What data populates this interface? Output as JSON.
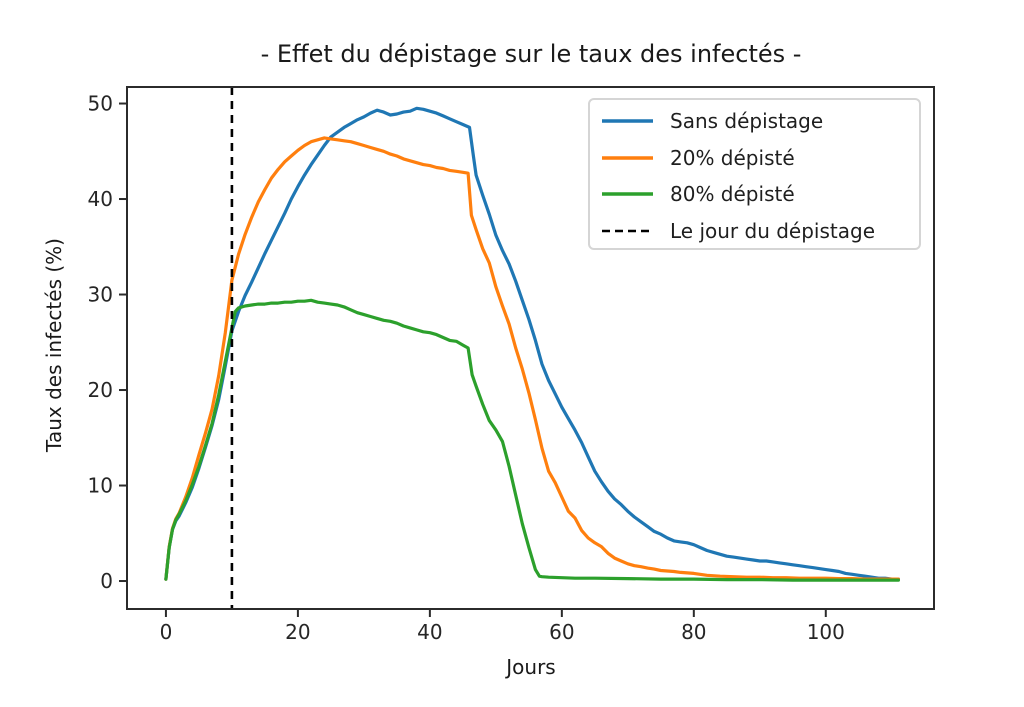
{
  "chart_data": {
    "type": "line",
    "title": "- Effet du dépistage sur le taux des infectés -",
    "xlabel": "Jours",
    "ylabel": "Taux des infectés (%)",
    "xlim": [
      -5.9,
      116.4
    ],
    "ylim": [
      -2.93,
      51.73
    ],
    "xticks": [
      0,
      20,
      40,
      60,
      80,
      100
    ],
    "yticks": [
      0,
      10,
      20,
      30,
      40,
      50
    ],
    "grid": false,
    "legend_position": "upper right",
    "axis_color": "#2b2b2b",
    "tick_label_color": "#262626",
    "vline": {
      "x": 10,
      "label": "Le jour du dépistage",
      "style": "dashed",
      "color": "#000000"
    },
    "series": [
      {
        "name": "Sans dépistage",
        "color": "#1f77b4",
        "points": [
          [
            0,
            0.2
          ],
          [
            0.5,
            3.5
          ],
          [
            1,
            5.4
          ],
          [
            1.5,
            6.3
          ],
          [
            2,
            6.8
          ],
          [
            3,
            8.2
          ],
          [
            4,
            9.8
          ],
          [
            5,
            11.8
          ],
          [
            6,
            14.0
          ],
          [
            7,
            16.3
          ],
          [
            8,
            19.0
          ],
          [
            9,
            22.5
          ],
          [
            10,
            26.2
          ],
          [
            11,
            28.2
          ],
          [
            12,
            29.9
          ],
          [
            13,
            31.3
          ],
          [
            14,
            32.8
          ],
          [
            15,
            34.3
          ],
          [
            16,
            35.7
          ],
          [
            17,
            37.1
          ],
          [
            18,
            38.5
          ],
          [
            19,
            40.0
          ],
          [
            20,
            41.3
          ],
          [
            21,
            42.5
          ],
          [
            22,
            43.6
          ],
          [
            23,
            44.6
          ],
          [
            24,
            45.6
          ],
          [
            25,
            46.5
          ],
          [
            26,
            47.0
          ],
          [
            27,
            47.5
          ],
          [
            28,
            47.9
          ],
          [
            29,
            48.3
          ],
          [
            30,
            48.6
          ],
          [
            31,
            49.0
          ],
          [
            32,
            49.3
          ],
          [
            33,
            49.1
          ],
          [
            34,
            48.8
          ],
          [
            35,
            48.9
          ],
          [
            36,
            49.1
          ],
          [
            37,
            49.2
          ],
          [
            38,
            49.5
          ],
          [
            39,
            49.4
          ],
          [
            40,
            49.2
          ],
          [
            41,
            49.0
          ],
          [
            42,
            48.7
          ],
          [
            43,
            48.4
          ],
          [
            44,
            48.1
          ],
          [
            45,
            47.8
          ],
          [
            46,
            47.5
          ],
          [
            46.6,
            44.5
          ],
          [
            47,
            42.5
          ],
          [
            48,
            40.4
          ],
          [
            49,
            38.4
          ],
          [
            50,
            36.2
          ],
          [
            51,
            34.6
          ],
          [
            52,
            33.2
          ],
          [
            53,
            31.4
          ],
          [
            54,
            29.4
          ],
          [
            55,
            27.4
          ],
          [
            56,
            25.2
          ],
          [
            57,
            22.7
          ],
          [
            58,
            21.0
          ],
          [
            59,
            19.6
          ],
          [
            60,
            18.2
          ],
          [
            61,
            17.0
          ],
          [
            62,
            15.8
          ],
          [
            63,
            14.5
          ],
          [
            64,
            13.0
          ],
          [
            65,
            11.5
          ],
          [
            66,
            10.4
          ],
          [
            67,
            9.4
          ],
          [
            68,
            8.6
          ],
          [
            69,
            8.0
          ],
          [
            70,
            7.3
          ],
          [
            71,
            6.7
          ],
          [
            72,
            6.2
          ],
          [
            73,
            5.7
          ],
          [
            74,
            5.2
          ],
          [
            75,
            4.9
          ],
          [
            76,
            4.5
          ],
          [
            77,
            4.2
          ],
          [
            78,
            4.1
          ],
          [
            79,
            4.0
          ],
          [
            80,
            3.8
          ],
          [
            81,
            3.5
          ],
          [
            82,
            3.2
          ],
          [
            83,
            3.0
          ],
          [
            84,
            2.8
          ],
          [
            85,
            2.6
          ],
          [
            86,
            2.5
          ],
          [
            87,
            2.4
          ],
          [
            88,
            2.3
          ],
          [
            89,
            2.2
          ],
          [
            90,
            2.1
          ],
          [
            91,
            2.1
          ],
          [
            92,
            2.0
          ],
          [
            93,
            1.9
          ],
          [
            94,
            1.8
          ],
          [
            95,
            1.7
          ],
          [
            96,
            1.6
          ],
          [
            97,
            1.5
          ],
          [
            98,
            1.4
          ],
          [
            99,
            1.3
          ],
          [
            100,
            1.2
          ],
          [
            101,
            1.1
          ],
          [
            102,
            1.0
          ],
          [
            103,
            0.8
          ],
          [
            104,
            0.7
          ],
          [
            105,
            0.6
          ],
          [
            106,
            0.5
          ],
          [
            107,
            0.4
          ],
          [
            108,
            0.3
          ],
          [
            109,
            0.3
          ],
          [
            110,
            0.2
          ],
          [
            111,
            0.2
          ]
        ]
      },
      {
        "name": "20% dépisté",
        "color": "#ff7f0e",
        "points": [
          [
            0,
            0.2
          ],
          [
            0.5,
            3.6
          ],
          [
            1,
            5.5
          ],
          [
            1.5,
            6.5
          ],
          [
            2,
            7.1
          ],
          [
            3,
            8.8
          ],
          [
            4,
            10.8
          ],
          [
            5,
            13.2
          ],
          [
            6,
            15.5
          ],
          [
            7,
            18.0
          ],
          [
            8,
            21.5
          ],
          [
            9,
            26.0
          ],
          [
            10,
            31.5
          ],
          [
            11,
            34.2
          ],
          [
            12,
            36.3
          ],
          [
            13,
            38.1
          ],
          [
            14,
            39.7
          ],
          [
            15,
            41.0
          ],
          [
            16,
            42.2
          ],
          [
            17,
            43.1
          ],
          [
            18,
            43.9
          ],
          [
            19,
            44.5
          ],
          [
            20,
            45.1
          ],
          [
            21,
            45.6
          ],
          [
            22,
            46.0
          ],
          [
            23,
            46.2
          ],
          [
            24,
            46.4
          ],
          [
            25,
            46.3
          ],
          [
            26,
            46.2
          ],
          [
            27,
            46.1
          ],
          [
            28,
            46.0
          ],
          [
            29,
            45.8
          ],
          [
            30,
            45.6
          ],
          [
            31,
            45.4
          ],
          [
            32,
            45.2
          ],
          [
            33,
            45.0
          ],
          [
            34,
            44.7
          ],
          [
            35,
            44.5
          ],
          [
            36,
            44.2
          ],
          [
            37,
            44.0
          ],
          [
            38,
            43.8
          ],
          [
            39,
            43.6
          ],
          [
            40,
            43.5
          ],
          [
            41,
            43.3
          ],
          [
            42,
            43.2
          ],
          [
            43,
            43.0
          ],
          [
            44,
            42.9
          ],
          [
            45,
            42.8
          ],
          [
            45.8,
            42.7
          ],
          [
            46.3,
            38.3
          ],
          [
            47,
            36.8
          ],
          [
            48,
            34.8
          ],
          [
            49,
            33.3
          ],
          [
            50,
            30.8
          ],
          [
            51,
            28.8
          ],
          [
            52,
            26.9
          ],
          [
            53,
            24.4
          ],
          [
            54,
            22.2
          ],
          [
            55,
            19.7
          ],
          [
            56,
            16.9
          ],
          [
            57,
            13.9
          ],
          [
            58,
            11.5
          ],
          [
            59,
            10.3
          ],
          [
            60,
            8.8
          ],
          [
            61,
            7.3
          ],
          [
            62,
            6.6
          ],
          [
            63,
            5.3
          ],
          [
            64,
            4.5
          ],
          [
            65,
            4.0
          ],
          [
            66,
            3.6
          ],
          [
            67,
            2.9
          ],
          [
            68,
            2.4
          ],
          [
            69,
            2.1
          ],
          [
            70,
            1.8
          ],
          [
            71,
            1.6
          ],
          [
            72,
            1.5
          ],
          [
            73,
            1.35
          ],
          [
            74,
            1.25
          ],
          [
            75,
            1.1
          ],
          [
            76,
            1.05
          ],
          [
            77,
            1.0
          ],
          [
            78,
            0.9
          ],
          [
            79,
            0.85
          ],
          [
            80,
            0.8
          ],
          [
            82,
            0.6
          ],
          [
            84,
            0.5
          ],
          [
            86,
            0.45
          ],
          [
            88,
            0.4
          ],
          [
            90,
            0.4
          ],
          [
            92,
            0.35
          ],
          [
            94,
            0.35
          ],
          [
            96,
            0.3
          ],
          [
            98,
            0.3
          ],
          [
            100,
            0.3
          ],
          [
            102,
            0.25
          ],
          [
            104,
            0.25
          ],
          [
            106,
            0.2
          ],
          [
            108,
            0.2
          ],
          [
            110,
            0.2
          ],
          [
            111,
            0.2
          ]
        ]
      },
      {
        "name": "80% dépisté",
        "color": "#2ca02c",
        "points": [
          [
            0,
            0.2
          ],
          [
            0.5,
            3.5
          ],
          [
            1,
            5.4
          ],
          [
            1.5,
            6.4
          ],
          [
            2,
            7.0
          ],
          [
            3,
            8.4
          ],
          [
            4,
            10.1
          ],
          [
            5,
            12.0
          ],
          [
            6,
            14.2
          ],
          [
            7,
            16.5
          ],
          [
            8,
            19.5
          ],
          [
            9,
            23.0
          ],
          [
            10,
            26.5
          ],
          [
            10.5,
            28.2
          ],
          [
            11,
            28.6
          ],
          [
            12,
            28.8
          ],
          [
            13,
            28.9
          ],
          [
            14,
            29.0
          ],
          [
            15,
            29.0
          ],
          [
            16,
            29.1
          ],
          [
            17,
            29.1
          ],
          [
            18,
            29.2
          ],
          [
            19,
            29.2
          ],
          [
            20,
            29.3
          ],
          [
            21,
            29.3
          ],
          [
            22,
            29.4
          ],
          [
            23,
            29.2
          ],
          [
            24,
            29.1
          ],
          [
            25,
            29.0
          ],
          [
            26,
            28.9
          ],
          [
            27,
            28.7
          ],
          [
            28,
            28.4
          ],
          [
            29,
            28.1
          ],
          [
            30,
            27.9
          ],
          [
            31,
            27.7
          ],
          [
            32,
            27.5
          ],
          [
            33,
            27.3
          ],
          [
            34,
            27.2
          ],
          [
            35,
            27.0
          ],
          [
            36,
            26.7
          ],
          [
            37,
            26.5
          ],
          [
            38,
            26.3
          ],
          [
            39,
            26.1
          ],
          [
            40,
            26.0
          ],
          [
            41,
            25.8
          ],
          [
            42,
            25.5
          ],
          [
            43,
            25.2
          ],
          [
            44,
            25.1
          ],
          [
            45,
            24.7
          ],
          [
            45.8,
            24.4
          ],
          [
            46.4,
            21.6
          ],
          [
            47,
            20.4
          ],
          [
            48,
            18.5
          ],
          [
            49,
            16.8
          ],
          [
            50,
            15.8
          ],
          [
            51,
            14.6
          ],
          [
            52,
            12.0
          ],
          [
            53,
            9.0
          ],
          [
            54,
            6.0
          ],
          [
            55,
            3.5
          ],
          [
            56,
            1.2
          ],
          [
            56.6,
            0.5
          ],
          [
            57,
            0.45
          ],
          [
            58,
            0.4
          ],
          [
            60,
            0.35
          ],
          [
            62,
            0.3
          ],
          [
            65,
            0.3
          ],
          [
            70,
            0.25
          ],
          [
            75,
            0.2
          ],
          [
            80,
            0.2
          ],
          [
            85,
            0.15
          ],
          [
            90,
            0.15
          ],
          [
            95,
            0.1
          ],
          [
            100,
            0.1
          ],
          [
            105,
            0.1
          ],
          [
            111,
            0.1
          ]
        ]
      }
    ]
  }
}
